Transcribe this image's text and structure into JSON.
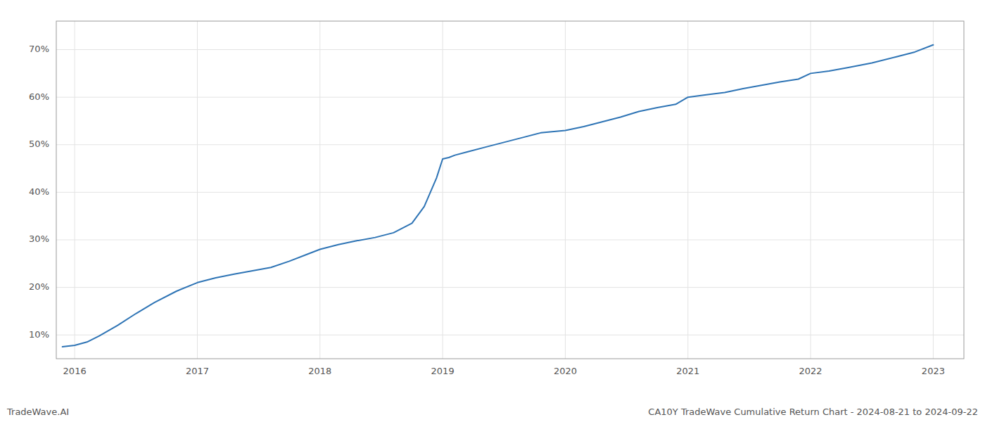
{
  "chart_data": {
    "type": "line",
    "color": "#2e74b5",
    "annotations": [
      "TradeWave.AI",
      "CA10Y TradeWave Cumulative Return Chart - 2024-08-21 to 2024-09-22"
    ],
    "x": [
      2015.9,
      2016.0,
      2016.1,
      2016.2,
      2016.35,
      2016.5,
      2016.65,
      2016.83,
      2017.0,
      2017.15,
      2017.3,
      2017.45,
      2017.6,
      2017.75,
      2017.9,
      2018.0,
      2018.15,
      2018.3,
      2018.45,
      2018.6,
      2018.75,
      2018.85,
      2018.95,
      2019.0,
      2019.05,
      2019.1,
      2019.2,
      2019.35,
      2019.5,
      2019.65,
      2019.8,
      2020.0,
      2020.15,
      2020.3,
      2020.45,
      2020.6,
      2020.75,
      2020.9,
      2021.0,
      2021.15,
      2021.3,
      2021.45,
      2021.6,
      2021.75,
      2021.9,
      2022.0,
      2022.15,
      2022.3,
      2022.5,
      2022.7,
      2022.85,
      2023.0
    ],
    "values": [
      7.5,
      7.8,
      8.5,
      9.8,
      12.0,
      14.5,
      16.8,
      19.2,
      21.0,
      22.0,
      22.8,
      23.5,
      24.2,
      25.5,
      27.0,
      28.0,
      29.0,
      29.8,
      30.5,
      31.5,
      33.5,
      37.0,
      43.0,
      47.0,
      47.3,
      47.8,
      48.5,
      49.5,
      50.5,
      51.5,
      52.5,
      53.0,
      53.8,
      54.8,
      55.8,
      57.0,
      57.8,
      58.5,
      60.0,
      60.5,
      61.0,
      61.8,
      62.5,
      63.2,
      63.8,
      65.0,
      65.5,
      66.2,
      67.2,
      68.5,
      69.5,
      71.0
    ],
    "xlim": [
      2015.85,
      2023.25
    ],
    "ylim": [
      5,
      76
    ],
    "xticks": [
      2016,
      2017,
      2018,
      2019,
      2020,
      2021,
      2022,
      2023
    ],
    "yticks": [
      {
        "value": 10,
        "label": "10%"
      },
      {
        "value": 20,
        "label": "20%"
      },
      {
        "value": 30,
        "label": "30%"
      },
      {
        "value": 40,
        "label": "40%"
      },
      {
        "value": 50,
        "label": "50%"
      },
      {
        "value": 60,
        "label": "60%"
      },
      {
        "value": 70,
        "label": "70%"
      }
    ],
    "grid": true
  }
}
